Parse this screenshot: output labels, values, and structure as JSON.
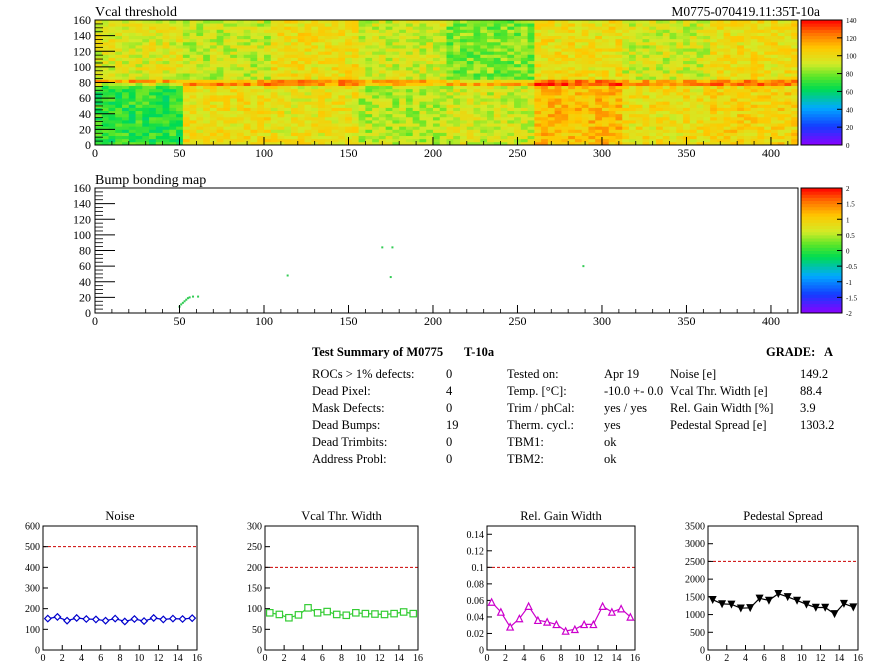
{
  "maps": {
    "vcal": {
      "title": "Vcal threshold",
      "module_label": "M0775-070419.11:35T-10a",
      "x_ticks": [
        0,
        50,
        100,
        150,
        200,
        250,
        300,
        350,
        400
      ],
      "y_ticks": [
        0,
        20,
        40,
        60,
        80,
        100,
        120,
        140,
        160
      ],
      "palette_ticks": [
        0,
        20,
        40,
        60,
        80,
        100,
        120,
        140
      ]
    },
    "bump": {
      "title": "Bump bonding map",
      "x_ticks": [
        0,
        50,
        100,
        150,
        200,
        250,
        300,
        350,
        400
      ],
      "y_ticks": [
        0,
        20,
        40,
        60,
        80,
        100,
        120,
        140,
        160
      ],
      "palette_ticks": [
        -2,
        -1.5,
        -1,
        -0.5,
        0,
        0.5,
        1,
        1.5,
        2
      ]
    }
  },
  "summary": {
    "header": "Test Summary of M0775",
    "test_type": "T-10a",
    "grade_label": "GRADE:",
    "grade": "A",
    "defects": [
      {
        "label": "ROCs > 1% defects:",
        "value": "0"
      },
      {
        "label": "Dead Pixel:",
        "value": "4"
      },
      {
        "label": "Mask Defects:",
        "value": "0"
      },
      {
        "label": "Dead Bumps:",
        "value": "19"
      },
      {
        "label": "Dead Trimbits:",
        "value": "0"
      },
      {
        "label": "Address Probl:",
        "value": "0"
      }
    ],
    "conditions": [
      {
        "label": "Tested on:",
        "value": "Apr 19"
      },
      {
        "label": "Temp. [°C]:",
        "value": "-10.0 +- 0.0"
      },
      {
        "label": "Trim / phCal:",
        "value": "yes / yes"
      },
      {
        "label": "Therm. cycl.:",
        "value": "yes"
      },
      {
        "label": "TBM1:",
        "value": "ok"
      },
      {
        "label": "TBM2:",
        "value": "ok"
      }
    ],
    "results": [
      {
        "label": "Noise [e]",
        "value": "149.2"
      },
      {
        "label": "Vcal Thr. Width [e]",
        "value": "88.4"
      },
      {
        "label": "Rel. Gain Width [%]",
        "value": "3.9"
      },
      {
        "label": "Pedestal Spread [e]",
        "value": "1303.2"
      }
    ]
  },
  "chart_data": [
    {
      "type": "heatmap",
      "title": "Vcal threshold",
      "x_range": [
        0,
        416
      ],
      "y_range": [
        0,
        160
      ],
      "z_range": [
        0,
        140
      ],
      "x_ticks": [
        0,
        50,
        100,
        150,
        200,
        250,
        300,
        350,
        400
      ],
      "y_ticks": [
        0,
        20,
        40,
        60,
        80,
        100,
        120,
        140,
        160
      ],
      "z_ticks": [
        0,
        20,
        40,
        60,
        80,
        100,
        120,
        140
      ],
      "description_values": {
        "roc_level_top": [
          95,
          90,
          100,
          92,
          80,
          100,
          92,
          100
        ],
        "roc_level_bottom": [
          70,
          100,
          98,
          88,
          92,
          110,
          100,
          104
        ]
      }
    },
    {
      "type": "heatmap",
      "title": "Bump bonding map",
      "x_range": [
        0,
        416
      ],
      "y_range": [
        0,
        160
      ],
      "z_range": [
        -2,
        2
      ],
      "x_ticks": [
        0,
        50,
        100,
        150,
        200,
        250,
        300,
        350,
        400
      ],
      "y_ticks": [
        0,
        20,
        40,
        60,
        80,
        100,
        120,
        140,
        160
      ],
      "z_ticks": [
        -2,
        -1.5,
        -1,
        -0.5,
        0,
        0.5,
        1,
        1.5,
        2
      ],
      "points": [
        [
          50,
          8
        ],
        [
          51,
          11
        ],
        [
          52,
          13
        ],
        [
          53,
          15
        ],
        [
          54,
          17
        ],
        [
          55,
          19
        ],
        [
          56,
          20
        ],
        [
          58,
          21
        ],
        [
          61,
          21
        ],
        [
          114,
          48
        ],
        [
          170,
          84
        ],
        [
          176,
          84
        ],
        [
          175,
          46
        ],
        [
          289,
          60
        ]
      ]
    },
    {
      "type": "line",
      "title": "Noise",
      "xlim": [
        0,
        16
      ],
      "ylim": [
        0,
        600
      ],
      "threshold": 500,
      "x_ticks": [
        0,
        2,
        4,
        6,
        8,
        10,
        12,
        14,
        16
      ],
      "y_ticks": [
        0,
        100,
        200,
        300,
        400,
        500,
        600
      ],
      "x": [
        0.5,
        1.5,
        2.5,
        3.5,
        4.5,
        5.5,
        6.5,
        7.5,
        8.5,
        9.5,
        10.5,
        11.5,
        12.5,
        13.5,
        14.5,
        15.5
      ],
      "values": [
        152,
        160,
        142,
        155,
        150,
        148,
        142,
        152,
        138,
        150,
        140,
        155,
        148,
        152,
        150,
        154
      ],
      "marker": "diamond",
      "color": "#0000cc"
    },
    {
      "type": "line",
      "title": "Vcal Thr. Width",
      "xlim": [
        0,
        16
      ],
      "ylim": [
        0,
        300
      ],
      "threshold": 200,
      "x_ticks": [
        0,
        2,
        4,
        6,
        8,
        10,
        12,
        14,
        16
      ],
      "y_ticks": [
        0,
        50,
        100,
        150,
        200,
        250,
        300
      ],
      "x": [
        0.5,
        1.5,
        2.5,
        3.5,
        4.5,
        5.5,
        6.5,
        7.5,
        8.5,
        9.5,
        10.5,
        11.5,
        12.5,
        13.5,
        14.5,
        15.5
      ],
      "values": [
        90,
        86,
        78,
        85,
        102,
        90,
        93,
        86,
        84,
        90,
        88,
        87,
        86,
        88,
        92,
        88
      ],
      "marker": "square",
      "color": "#33cc33"
    },
    {
      "type": "line",
      "title": "Rel. Gain Width",
      "xlim": [
        0,
        16
      ],
      "ylim": [
        0,
        0.15
      ],
      "threshold": 0.1,
      "x_ticks": [
        0,
        2,
        4,
        6,
        8,
        10,
        12,
        14,
        16
      ],
      "y_ticks": [
        0,
        0.02,
        0.04,
        0.06,
        0.08,
        0.1,
        0.12,
        0.14
      ],
      "x": [
        0.5,
        1.5,
        2.5,
        3.5,
        4.5,
        5.5,
        6.5,
        7.5,
        8.5,
        9.5,
        10.5,
        11.5,
        12.5,
        13.5,
        14.5,
        15.5
      ],
      "values": [
        0.058,
        0.046,
        0.028,
        0.038,
        0.053,
        0.036,
        0.034,
        0.031,
        0.023,
        0.025,
        0.031,
        0.031,
        0.053,
        0.046,
        0.05,
        0.04
      ],
      "marker": "triangle",
      "color": "#cc00cc"
    },
    {
      "type": "line",
      "title": "Pedestal Spread",
      "xlim": [
        0,
        16
      ],
      "ylim": [
        0,
        3500
      ],
      "threshold": 2500,
      "x_ticks": [
        0,
        2,
        4,
        6,
        8,
        10,
        12,
        14,
        16
      ],
      "y_ticks": [
        0,
        500,
        1000,
        1500,
        2000,
        2500,
        3000,
        3500
      ],
      "x": [
        0.5,
        1.5,
        2.5,
        3.5,
        4.5,
        5.5,
        6.5,
        7.5,
        8.5,
        9.5,
        10.5,
        11.5,
        12.5,
        13.5,
        14.5,
        15.5
      ],
      "values": [
        1420,
        1300,
        1290,
        1180,
        1190,
        1460,
        1400,
        1590,
        1500,
        1400,
        1290,
        1200,
        1200,
        1020,
        1310,
        1210
      ],
      "marker": "triangle-down",
      "color": "#000000"
    }
  ]
}
